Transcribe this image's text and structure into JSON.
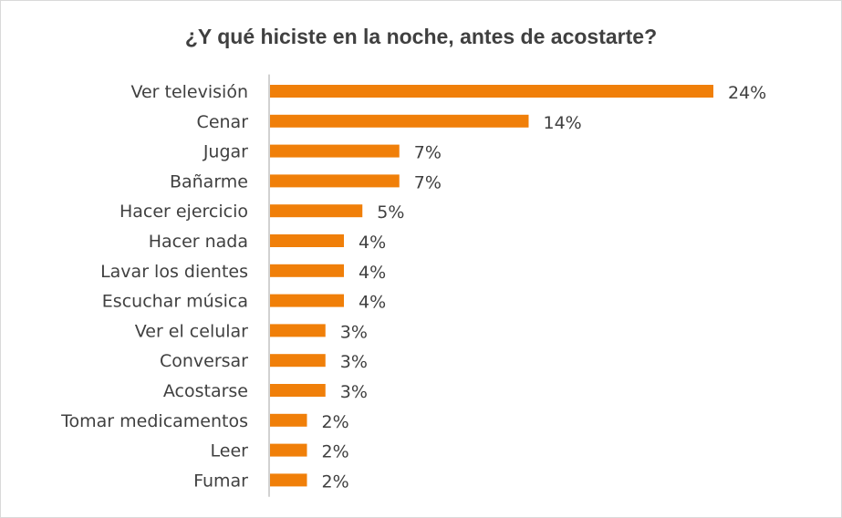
{
  "chart_data": {
    "type": "bar",
    "orientation": "horizontal",
    "title": "¿Y qué hiciste en la noche, antes de acostarte?",
    "categories": [
      "Ver televisión",
      "Cenar",
      "Jugar",
      "Bañarme",
      "Hacer ejercicio",
      "Hacer nada",
      "Lavar los dientes",
      "Escuchar música",
      "Ver el celular",
      "Conversar",
      "Acostarse",
      "Tomar medicamentos",
      "Leer",
      "Fumar"
    ],
    "values": [
      24,
      14,
      7,
      7,
      5,
      4,
      4,
      4,
      3,
      3,
      3,
      2,
      2,
      2
    ],
    "value_labels": [
      "24%",
      "14%",
      "7%",
      "7%",
      "5%",
      "4%",
      "4%",
      "4%",
      "3%",
      "3%",
      "3%",
      "2%",
      "2%",
      "2%"
    ],
    "unit": "%",
    "bar_color": "#f07f09",
    "text_color": "#404040",
    "axis_color": "#a6a6a6",
    "xlim": [
      0,
      24
    ],
    "grid": false,
    "legend": "none"
  }
}
